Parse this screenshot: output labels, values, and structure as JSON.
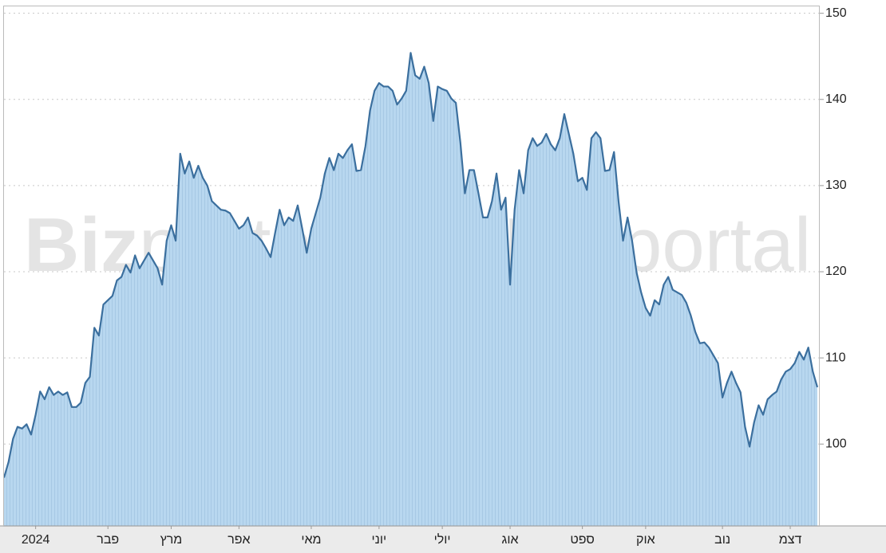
{
  "chart_data": {
    "type": "area",
    "watermark": [
      "Biz",
      "portal"
    ],
    "series": [
      {
        "color": "#3b6f9e",
        "fill": "#b8d7ef",
        "values": [
          96.1,
          97.9,
          100.6,
          102.0,
          101.8,
          102.3,
          101.1,
          103.4,
          106.1,
          105.2,
          106.6,
          105.7,
          106.1,
          105.7,
          106.0,
          104.3,
          104.3,
          104.8,
          107.1,
          107.8,
          113.5,
          112.6,
          116.2,
          116.7,
          117.2,
          119.0,
          119.4,
          120.8,
          119.9,
          121.9,
          120.4,
          121.3,
          122.2,
          121.3,
          120.4,
          118.5,
          123.6,
          125.4,
          123.6,
          133.7,
          131.4,
          132.8,
          130.9,
          132.3,
          130.9,
          130.0,
          128.2,
          127.7,
          127.2,
          127.1,
          126.8,
          125.9,
          125.0,
          125.4,
          126.3,
          124.5,
          124.2,
          123.6,
          122.7,
          121.7,
          124.5,
          127.2,
          125.4,
          126.3,
          125.9,
          127.7,
          125.0,
          122.2,
          125.0,
          126.8,
          128.6,
          131.4,
          133.2,
          131.8,
          133.7,
          133.2,
          134.1,
          134.8,
          131.7,
          131.8,
          134.6,
          138.7,
          141.0,
          141.9,
          141.5,
          141.5,
          141.0,
          139.4,
          140.1,
          141.0,
          145.4,
          142.8,
          142.4,
          143.8,
          141.9,
          137.5,
          141.5,
          141.2,
          141.0,
          140.1,
          139.6,
          135.0,
          129.1,
          131.8,
          131.8,
          129.1,
          126.3,
          126.3,
          128.2,
          131.4,
          127.2,
          128.6,
          118.5,
          127.2,
          131.8,
          129.1,
          134.1,
          135.5,
          134.6,
          135.0,
          136.0,
          134.8,
          134.1,
          135.5,
          138.3,
          136.0,
          133.7,
          130.5,
          130.9,
          129.5,
          135.5,
          136.2,
          135.5,
          131.7,
          131.8,
          133.9,
          128.2,
          123.6,
          126.3,
          123.6,
          119.9,
          117.6,
          115.8,
          114.9,
          116.7,
          116.2,
          118.5,
          119.4,
          117.9,
          117.6,
          117.3,
          116.4,
          114.9,
          113.0,
          111.7,
          111.8,
          111.2,
          110.3,
          109.4,
          105.4,
          107.1,
          108.4,
          107.1,
          106.0,
          102.0,
          99.7,
          102.5,
          104.5,
          103.4,
          105.2,
          105.7,
          106.1,
          107.5,
          108.4,
          108.7,
          109.4,
          110.7,
          109.8,
          111.2,
          108.4,
          106.6
        ]
      }
    ],
    "xlim": [
      0,
      180
    ],
    "xticks": [
      {
        "value": 7,
        "label": "2024"
      },
      {
        "value": 23,
        "label": "פבר"
      },
      {
        "value": 37,
        "label": "מרץ"
      },
      {
        "value": 52,
        "label": "אפר"
      },
      {
        "value": 68,
        "label": "מאי"
      },
      {
        "value": 83,
        "label": "יוני"
      },
      {
        "value": 97,
        "label": "יולי"
      },
      {
        "value": 112,
        "label": "אוג"
      },
      {
        "value": 128,
        "label": "ספט"
      },
      {
        "value": 142,
        "label": "אוק"
      },
      {
        "value": 159,
        "label": "נוב"
      },
      {
        "value": 174,
        "label": "דצמ"
      }
    ],
    "ylim": [
      90.5,
      150.8
    ],
    "yticks": [
      100,
      110,
      120,
      130,
      140,
      150
    ],
    "grid": true
  }
}
